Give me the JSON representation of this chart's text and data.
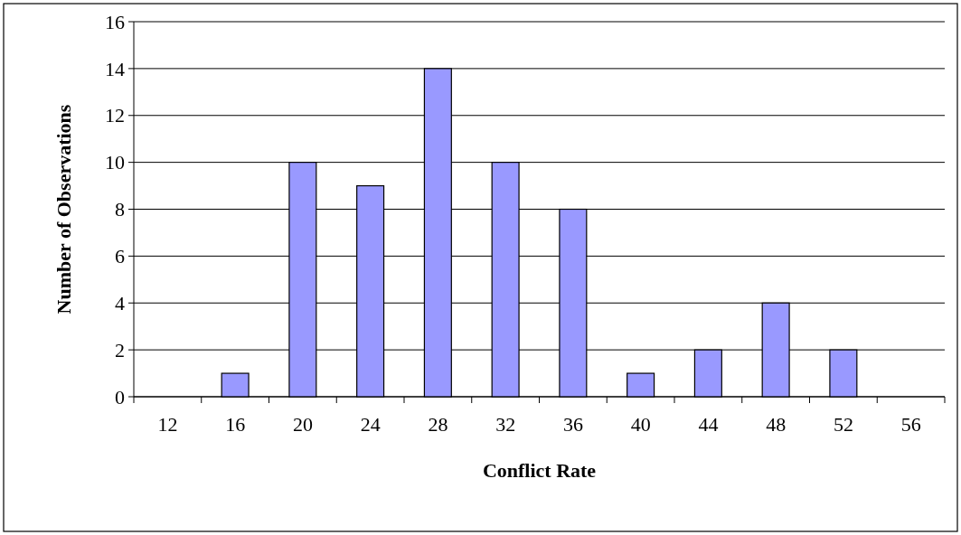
{
  "chart_data": {
    "type": "bar",
    "xlabel": "Conflict Rate",
    "ylabel": "Number of Observations",
    "categories": [
      "12",
      "16",
      "20",
      "24",
      "28",
      "32",
      "36",
      "40",
      "44",
      "48",
      "52",
      "56"
    ],
    "values": [
      0,
      1,
      10,
      9,
      14,
      10,
      8,
      1,
      2,
      4,
      2,
      0
    ],
    "color": "#9999ff",
    "ylim": [
      0,
      16
    ],
    "yticks": [
      0,
      2,
      4,
      6,
      8,
      10,
      12,
      14,
      16
    ],
    "grid": "y"
  }
}
